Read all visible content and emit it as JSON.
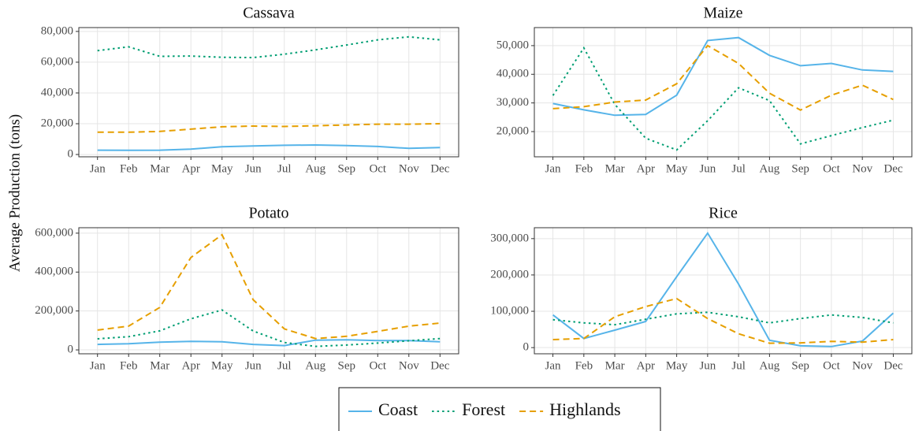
{
  "y_label": "Average Production (tons)",
  "chart_data": [
    {
      "type": "line",
      "title": "Cassava",
      "categories": [
        "Jan",
        "Feb",
        "Mar",
        "Apr",
        "May",
        "Jun",
        "Jul",
        "Aug",
        "Sep",
        "Oct",
        "Nov",
        "Dec"
      ],
      "series": [
        {
          "name": "Coast",
          "color": "#56b4e9",
          "dash": "solid",
          "values": [
            2800,
            2700,
            2800,
            3500,
            5000,
            5500,
            6000,
            6200,
            5800,
            5200,
            4000,
            4500
          ]
        },
        {
          "name": "Forest",
          "color": "#009e73",
          "dash": "dotted",
          "values": [
            67500,
            70000,
            63800,
            64000,
            63200,
            63000,
            65200,
            68000,
            71200,
            74500,
            76500,
            74500
          ]
        },
        {
          "name": "Highlands",
          "color": "#e69f00",
          "dash": "dashed",
          "values": [
            14500,
            14500,
            15000,
            16500,
            18000,
            18500,
            18200,
            18700,
            19200,
            19700,
            19700,
            20000
          ]
        }
      ],
      "ylim": [
        -1500,
        82500
      ],
      "yticks": [
        0,
        {
          "value": 20000,
          "label": "20,000"
        },
        {
          "value": 40000,
          "label": "40,000"
        },
        {
          "value": 60000,
          "label": "60,000"
        },
        {
          "value": 80000,
          "label": "80,000"
        }
      ],
      "grid": true
    },
    {
      "type": "line",
      "title": "Maize",
      "categories": [
        "Jan",
        "Feb",
        "Mar",
        "Apr",
        "May",
        "Jun",
        "Jul",
        "Aug",
        "Sep",
        "Oct",
        "Nov",
        "Dec"
      ],
      "series": [
        {
          "name": "Coast",
          "color": "#56b4e9",
          "dash": "solid",
          "values": [
            29800,
            27600,
            25700,
            26000,
            32700,
            51800,
            52800,
            46600,
            43000,
            43800,
            41500,
            41000
          ]
        },
        {
          "name": "Forest",
          "color": "#009e73",
          "dash": "dotted",
          "values": [
            32600,
            49200,
            29500,
            17700,
            13600,
            23800,
            35300,
            30800,
            15700,
            18600,
            21400,
            24000
          ]
        },
        {
          "name": "Highlands",
          "color": "#e69f00",
          "dash": "dashed",
          "values": [
            28000,
            28700,
            30300,
            31000,
            36700,
            50000,
            43800,
            33400,
            27500,
            32700,
            36200,
            31200
          ]
        }
      ],
      "ylim": [
        11200,
        56300
      ],
      "yticks": [
        {
          "value": 20000,
          "label": "20,000"
        },
        {
          "value": 30000,
          "label": "30,000"
        },
        {
          "value": 40000,
          "label": "40,000"
        },
        {
          "value": 50000,
          "label": "50,000"
        }
      ],
      "grid": true
    },
    {
      "type": "line",
      "title": "Potato",
      "categories": [
        "Jan",
        "Feb",
        "Mar",
        "Apr",
        "May",
        "Jun",
        "Jul",
        "Aug",
        "Sep",
        "Oct",
        "Nov",
        "Dec"
      ],
      "series": [
        {
          "name": "Coast",
          "color": "#56b4e9",
          "dash": "solid",
          "values": [
            28000,
            32000,
            40000,
            44000,
            42000,
            28000,
            22000,
            50000,
            52000,
            48000,
            48000,
            42000
          ]
        },
        {
          "name": "Forest",
          "color": "#009e73",
          "dash": "dotted",
          "values": [
            57000,
            68000,
            98000,
            160000,
            205000,
            97000,
            38000,
            18000,
            25000,
            35000,
            47000,
            58000
          ]
        },
        {
          "name": "Highlands",
          "color": "#e69f00",
          "dash": "dashed",
          "values": [
            102000,
            122000,
            218000,
            475000,
            592000,
            258000,
            108000,
            58000,
            70000,
            95000,
            122000,
            138000
          ]
        }
      ],
      "ylim": [
        -20000,
        628000
      ],
      "yticks": [
        0,
        {
          "value": 200000,
          "label": "200,000"
        },
        {
          "value": 400000,
          "label": "400,000"
        },
        {
          "value": 600000,
          "label": "600,000"
        }
      ],
      "grid": true
    },
    {
      "type": "line",
      "title": "Rice",
      "categories": [
        "Jan",
        "Feb",
        "Mar",
        "Apr",
        "May",
        "Jun",
        "Jul",
        "Aug",
        "Sep",
        "Oct",
        "Nov",
        "Dec"
      ],
      "series": [
        {
          "name": "Coast",
          "color": "#56b4e9",
          "dash": "solid",
          "values": [
            90000,
            25000,
            48000,
            72000,
            195000,
            315000,
            175000,
            20000,
            5000,
            3000,
            18000,
            95000
          ]
        },
        {
          "name": "Forest",
          "color": "#009e73",
          "dash": "dotted",
          "values": [
            77000,
            68000,
            63000,
            78000,
            93000,
            97000,
            85000,
            68000,
            80000,
            90000,
            83000,
            68000
          ]
        },
        {
          "name": "Highlands",
          "color": "#e69f00",
          "dash": "dashed",
          "values": [
            22000,
            25000,
            85000,
            113000,
            135000,
            80000,
            38000,
            12000,
            13000,
            17000,
            15000,
            22000
          ]
        }
      ],
      "ylim": [
        -17000,
        330000
      ],
      "yticks": [
        0,
        {
          "value": 100000,
          "label": "100,000"
        },
        {
          "value": 200000,
          "label": "200,000"
        },
        {
          "value": 300000,
          "label": "300,000"
        }
      ],
      "grid": true
    }
  ]
}
